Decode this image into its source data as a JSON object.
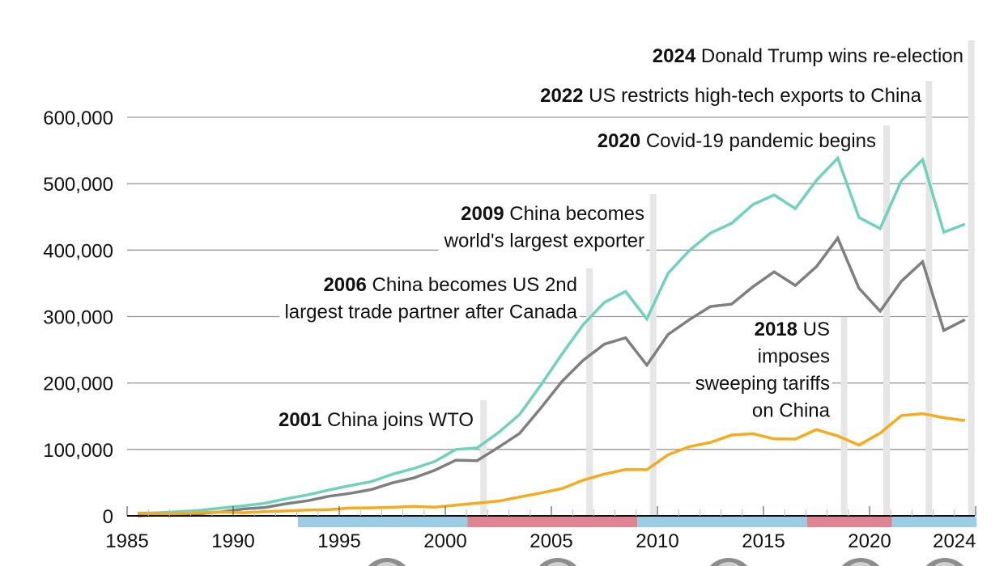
{
  "chart_data": {
    "type": "line",
    "title": "",
    "xlabel": "",
    "ylabel": "",
    "xlim": [
      1985,
      2025
    ],
    "ylim": [
      0,
      600000
    ],
    "grid": true,
    "y_ticks": [
      0,
      100000,
      200000,
      300000,
      400000,
      500000,
      600000
    ],
    "y_tick_labels": [
      "0",
      "100,000",
      "200,000",
      "300,000",
      "400,000",
      "500,000",
      "600,000"
    ],
    "x_ticks": [
      1985,
      1990,
      1995,
      2000,
      2005,
      2010,
      2015,
      2020,
      2024
    ],
    "x_tick_labels": [
      "1985",
      "1990",
      "1995",
      "2000",
      "2005",
      "2010",
      "2015",
      "2020",
      "2024"
    ],
    "x": [
      1985,
      1986,
      1987,
      1988,
      1989,
      1990,
      1991,
      1992,
      1993,
      1994,
      1995,
      1996,
      1997,
      1998,
      1999,
      2000,
      2001,
      2002,
      2003,
      2004,
      2005,
      2006,
      2007,
      2008,
      2009,
      2010,
      2011,
      2012,
      2013,
      2014,
      2015,
      2016,
      2017,
      2018,
      2019,
      2020,
      2021,
      2022,
      2023,
      2024
    ],
    "series": [
      {
        "color": "#6fd3bb",
        "values": [
          3862,
          4771,
          6294,
          8511,
          11990,
          15237,
          18969,
          25728,
          31540,
          38787,
          45543,
          51513,
          62558,
          71169,
          81788,
          100018,
          102278,
          125193,
          152436,
          196682,
          243470,
          287774,
          321443,
          337773,
          296374,
          364953,
          399371,
          425619,
          440430,
          468475,
          483202,
          462420,
          505165,
          538514,
          449110,
          432548,
          504294,
          536307,
          426885,
          438947
        ]
      },
      {
        "color": "#7f7f80",
        "values": [
          6,
          1665,
          2797,
          3489,
          6235,
          10431,
          12691,
          18309,
          22777,
          29505,
          33789,
          39520,
          49696,
          56928,
          68677,
          83833,
          83096,
          103065,
          124068,
          162254,
          202278,
          234101,
          258506,
          268040,
          226877,
          273042,
          295249,
          315102,
          318684,
          344818,
          367329,
          346825,
          375271,
          418233,
          342662,
          308063,
          353229,
          382470,
          279084,
          295401
        ]
      },
      {
        "color": "#f5ab1b",
        "values": [
          3856,
          3106,
          3497,
          5022,
          5755,
          4806,
          6278,
          7419,
          8763,
          9282,
          11754,
          11993,
          12862,
          14241,
          13111,
          16185,
          19182,
          22128,
          28368,
          34428,
          41192,
          53673,
          62937,
          69733,
          69497,
          91911,
          104122,
          110517,
          121746,
          123657,
          115873,
          115595,
          129894,
          120281,
          106448,
          124485,
          151065,
          153837,
          147801,
          143546
        ]
      }
    ],
    "presidency_bands": [
      {
        "from": 1993,
        "to": 2001,
        "color": "#9ccde6"
      },
      {
        "from": 2001,
        "to": 2009,
        "color": "#e08492"
      },
      {
        "from": 2009,
        "to": 2017,
        "color": "#9ccde6"
      },
      {
        "from": 2017,
        "to": 2021,
        "color": "#e08492"
      },
      {
        "from": 2021,
        "to": 2025,
        "color": "#9ccde6"
      }
    ],
    "annotations": [
      {
        "year": "2001",
        "lines": [
          "China joins WTO"
        ]
      },
      {
        "year": "2006",
        "lines": [
          "China becomes US 2nd",
          "largest trade partner after Canada"
        ]
      },
      {
        "year": "2009",
        "lines": [
          "China becomes",
          "world's largest exporter"
        ]
      },
      {
        "year": "2018",
        "lines": [
          "US",
          "imposes",
          "sweeping tariffs",
          "on China"
        ]
      },
      {
        "year": "2020",
        "lines": [
          "Covid-19 pandemic begins"
        ]
      },
      {
        "year": "2022",
        "lines": [
          "US restricts high-tech exports to China"
        ]
      },
      {
        "year": "2024",
        "lines": [
          "Donald Trump wins re-election"
        ]
      }
    ]
  }
}
